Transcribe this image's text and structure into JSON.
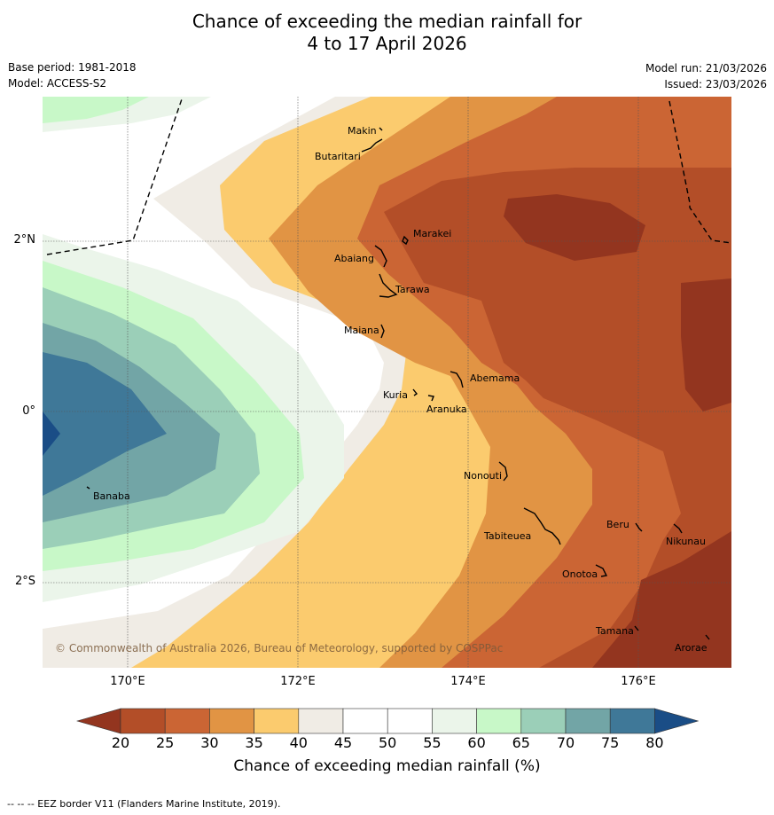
{
  "title_line1": "Chance of exceeding the median rainfall for",
  "title_line2": "4 to 17 April 2026",
  "base_period": "Base period: 1981-2018",
  "model": "Model: ACCESS-S2",
  "model_run": "Model run: 21/03/2026",
  "issued": "Issued: 23/03/2026",
  "lat_labels": [
    "2°N",
    "0°",
    "2°S"
  ],
  "lon_labels": [
    "170°E",
    "172°E",
    "174°E",
    "176°E"
  ],
  "colorbar_ticks": [
    "20",
    "25",
    "30",
    "35",
    "40",
    "45",
    "50",
    "55",
    "60",
    "65",
    "70",
    "75",
    "80"
  ],
  "colorbar_colors": [
    "#93351f",
    "#b34e28",
    "#cb6534",
    "#e19444",
    "#fbcb6e",
    "#f0ece5",
    "#ffffff",
    "#ffffff",
    "#ebf5ea",
    "#c8f8c8",
    "#9bcfb8",
    "#72a5a6",
    "#3f7898",
    "#1a4d86"
  ],
  "colorbar_label": "Chance of exceeding median rainfall (%)",
  "copyright": "© Commonwealth of Australia 2026, Bureau of Meteorology, supported by COSPPac",
  "footer": "--  --  -- EEZ border V11 (Flanders Marine Institute, 2019).",
  "islands": [
    "Makin",
    "Butaritari",
    "Marakei",
    "Abaiang",
    "Tarawa",
    "Maiana",
    "Abemama",
    "Kuria",
    "Aranuka",
    "Nonouti",
    "Tabiteuea",
    "Beru",
    "Nikunau",
    "Onotoa",
    "Tamana",
    "Arorae",
    "Banaba"
  ]
}
